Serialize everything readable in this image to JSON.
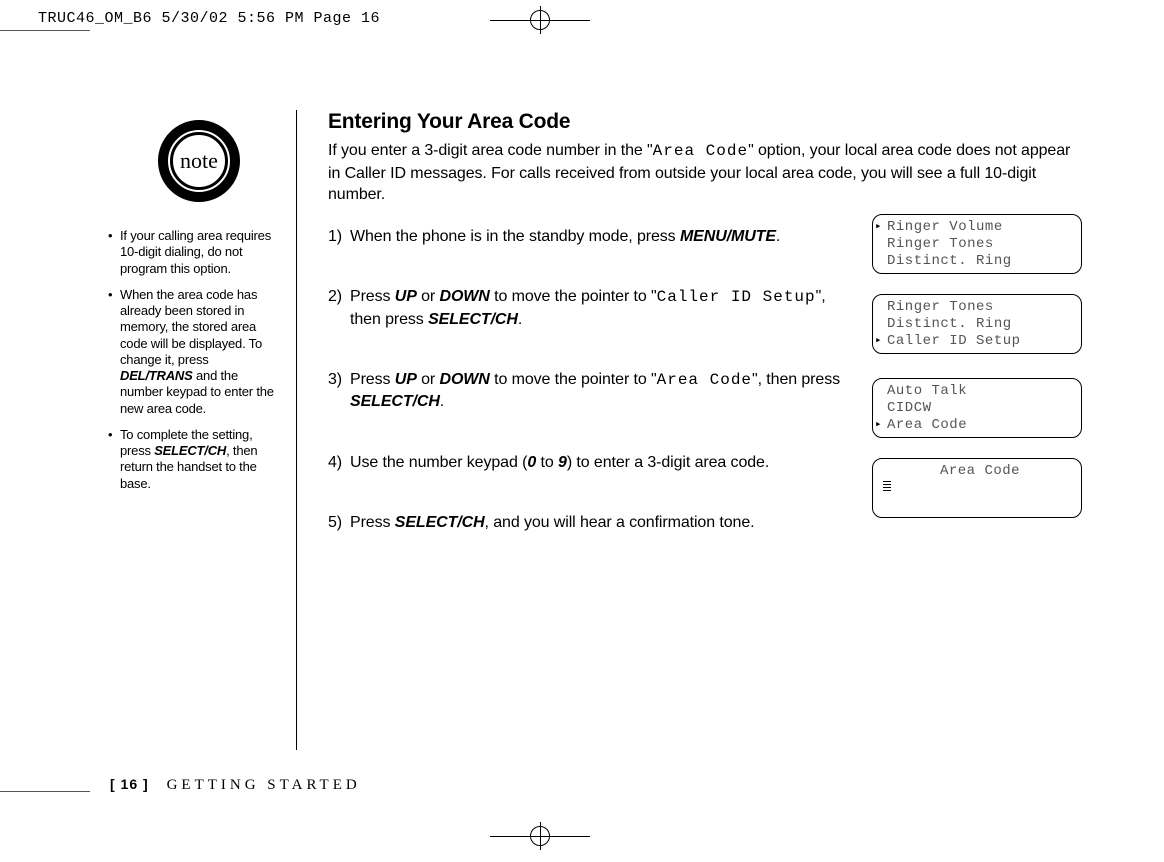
{
  "print_header": "TRUC46_OM_B6  5/30/02  5:56 PM  Page 16",
  "note_badge": "note",
  "notes": [
    {
      "pre": "If your calling area requires 10-digit dialing, do not program this option."
    },
    {
      "pre": "When the area code has already been stored in memory, the stored area code will be displayed. To change it, press ",
      "key1": "DEL/TRANS",
      "mid": " and the number keypad to enter the new area code."
    },
    {
      "pre": "To complete the setting, press ",
      "key1": "SELECT/CH",
      "mid": ", then return the handset to the base."
    }
  ],
  "heading": "Entering Your Area Code",
  "intro": {
    "a": "If you enter a 3-digit area code number in the \"",
    "code": "Area Code",
    "b": "\" option, your local area code does not appear in Caller ID messages. For calls received from outside your local area code, you will see a full 10-digit number."
  },
  "steps": {
    "s1": {
      "num": "1)",
      "a": "When the phone is in the standby mode, press ",
      "k1": "MENU/MUTE",
      "b": "."
    },
    "s2": {
      "num": "2)",
      "a": "Press ",
      "k1": "UP",
      "b": " or ",
      "k2": "DOWN",
      "c": " to move the pointer to \"",
      "code": "Caller ID Setup",
      "d": "\", then press ",
      "k3": "SELECT/CH",
      "e": "."
    },
    "s3": {
      "num": "3)",
      "a": "Press ",
      "k1": "UP",
      "b": " or ",
      "k2": "DOWN",
      "c": " to move the pointer to \"",
      "code": "Area Code",
      "d": "\", then press ",
      "k3": "SELECT/CH",
      "e": "."
    },
    "s4": {
      "num": "4)",
      "a": "Use the number keypad (",
      "k1": "0",
      "b": " to ",
      "k2": "9",
      "c": ") to enter a 3-digit area code."
    },
    "s5": {
      "num": "5)",
      "a": "Press ",
      "k1": "SELECT/CH",
      "b": ", and you will hear a confirmation tone."
    }
  },
  "lcd": {
    "s1": [
      "Ringer Volume",
      "Ringer Tones",
      "Distinct. Ring"
    ],
    "s1_ptr": 0,
    "s2": [
      "Ringer Tones",
      "Distinct. Ring",
      "Caller ID Setup"
    ],
    "s2_ptr": 2,
    "s3": [
      "Auto Talk",
      "CIDCW",
      "Area Code"
    ],
    "s3_ptr": 2,
    "s4_title": "Area Code"
  },
  "footer": {
    "page": "[ 16 ]",
    "section": "GETTING STARTED"
  },
  "colors": {
    "text": "#000000",
    "lcd_text": "#555555",
    "bg": "#ffffff"
  }
}
